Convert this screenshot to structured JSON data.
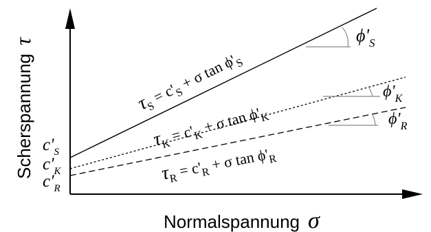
{
  "axes": {
    "x_label": "Normalspannung",
    "x_symbol": "σ",
    "y_label": "Scherspannung",
    "y_symbol": "τ"
  },
  "lines": [
    {
      "id": "S",
      "tau": "τ",
      "sub": "S",
      "eq": " = c'",
      "csub": "S",
      "rest": " + σ tan ϕ'",
      "phisub": "S"
    },
    {
      "id": "K",
      "tau": "τ",
      "sub": "K",
      "eq": " = c'",
      "csub": "K",
      "rest": " + σ tan ϕ'",
      "phisub": "K"
    },
    {
      "id": "R",
      "tau": "τ",
      "sub": "R",
      "eq": " = c'",
      "csub": "R",
      "rest": " + σ tan ϕ'",
      "phisub": "R"
    }
  ],
  "intercepts": [
    {
      "id": "S",
      "base": "c'",
      "sub": "S"
    },
    {
      "id": "K",
      "base": "c'",
      "sub": "K"
    },
    {
      "id": "R",
      "base": "c'",
      "sub": "R"
    }
  ],
  "angles": [
    {
      "id": "S",
      "base": "ϕ'",
      "sub": "S"
    },
    {
      "id": "K",
      "base": "ϕ'",
      "sub": "K"
    },
    {
      "id": "R",
      "base": "ϕ'",
      "sub": "R"
    }
  ]
}
